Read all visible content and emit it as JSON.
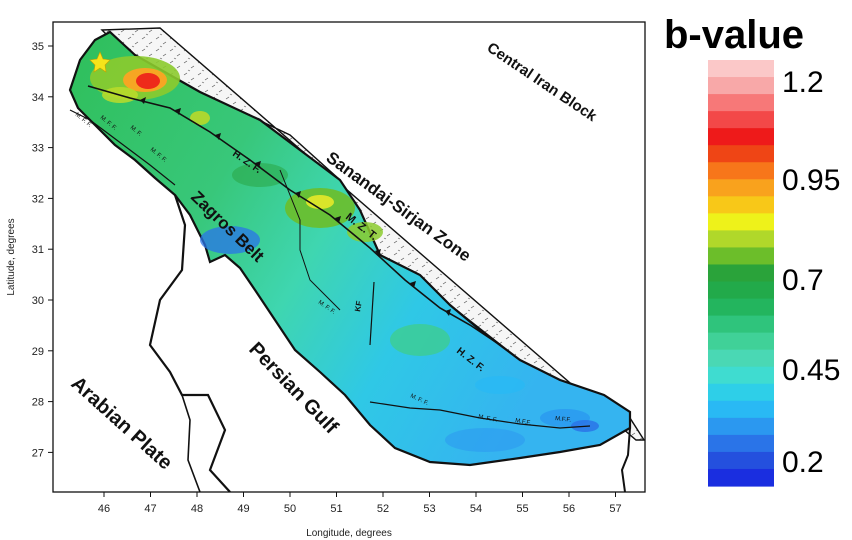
{
  "map": {
    "x_axis": {
      "label": "Longitude, degrees",
      "ticks": [
        "46",
        "47",
        "48",
        "49",
        "50",
        "51",
        "52",
        "53",
        "54",
        "55",
        "56",
        "57"
      ]
    },
    "y_axis": {
      "label": "Latitude, degrees",
      "ticks": [
        "35",
        "34",
        "33",
        "32",
        "31",
        "30",
        "29",
        "28",
        "27"
      ]
    },
    "regions": {
      "central_iran": "Central Iran Block",
      "sanandaj": "Sanandaj-Sirjan Zone",
      "zagros": "Zagros Belt",
      "persian_gulf": "Persian Gulf",
      "arabian_plate": "Arabian Plate"
    },
    "faults": {
      "hzf": "H. Z. F.",
      "mzt": "M. Z. T.",
      "mff": "M. F. F.",
      "kf": "KF",
      "mf": "M. F.",
      "mff_compact": "M.F.F."
    },
    "event_marker": "star",
    "colors": {
      "background": "#ffffff",
      "land_outline": "#111111",
      "sanandaj_fill": "#f6f6f6"
    }
  },
  "colorbar": {
    "title": "b-value",
    "labels": [
      "1.2",
      "0.95",
      "0.7",
      "0.45",
      "0.2"
    ],
    "colors": [
      "#fbc8c8",
      "#f8a8a8",
      "#f77878",
      "#f34848",
      "#ee1a1a",
      "#ef4515",
      "#f7761a",
      "#f9a21d",
      "#f8c818",
      "#eef21a",
      "#b0d82a",
      "#6cbe2a",
      "#2aa33a",
      "#22aa4a",
      "#23b55e",
      "#2fc47c",
      "#40d198",
      "#4ad8b4",
      "#3fdcd0",
      "#2ecfe8",
      "#29b9f4",
      "#2b98f0",
      "#2a74e8",
      "#2450de",
      "#1a2ee0"
    ]
  }
}
